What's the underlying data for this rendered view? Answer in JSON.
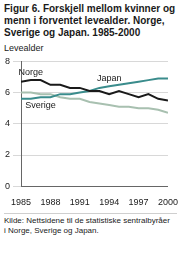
{
  "chart_data": {
    "type": "line",
    "title": "Figur 6. Forskjell mellom kvinner og menn i forventet levealder. Norge, Sverige og Japan. 1985-2000",
    "ylabel": "Levealder",
    "source": "Kilde: Nettsidene til de statistiske sentralbyråer i Norge, Sverige og Japan.",
    "x": [
      1985,
      1986,
      1987,
      1988,
      1989,
      1990,
      1991,
      1992,
      1993,
      1994,
      1995,
      1996,
      1997,
      1998,
      1999,
      2000
    ],
    "series": [
      {
        "name": "Norge",
        "color": "#1a1a1a",
        "values": [
          6.7,
          6.8,
          6.8,
          6.5,
          6.5,
          6.3,
          6.3,
          6.1,
          6.1,
          5.9,
          6.1,
          5.9,
          5.7,
          5.9,
          5.6,
          5.5
        ]
      },
      {
        "name": "Japan",
        "color": "#3a8c8c",
        "values": [
          5.6,
          5.6,
          5.7,
          5.7,
          5.9,
          5.9,
          6.0,
          6.1,
          6.3,
          6.4,
          6.5,
          6.6,
          6.7,
          6.8,
          6.9,
          6.9
        ]
      },
      {
        "name": "Sverige",
        "color": "#a8c0b0",
        "values": [
          6.0,
          6.0,
          5.9,
          5.9,
          5.7,
          5.6,
          5.6,
          5.4,
          5.3,
          5.2,
          5.1,
          5.1,
          5.0,
          5.0,
          4.9,
          4.7
        ]
      }
    ],
    "xlim": [
      1985,
      2000
    ],
    "xticks": [
      1985,
      1988,
      1991,
      1994,
      1997,
      2000
    ],
    "ylim": [
      0,
      8
    ],
    "yticks": [
      0,
      2,
      4,
      6,
      8
    ],
    "grid": true,
    "line_style": "solid"
  }
}
